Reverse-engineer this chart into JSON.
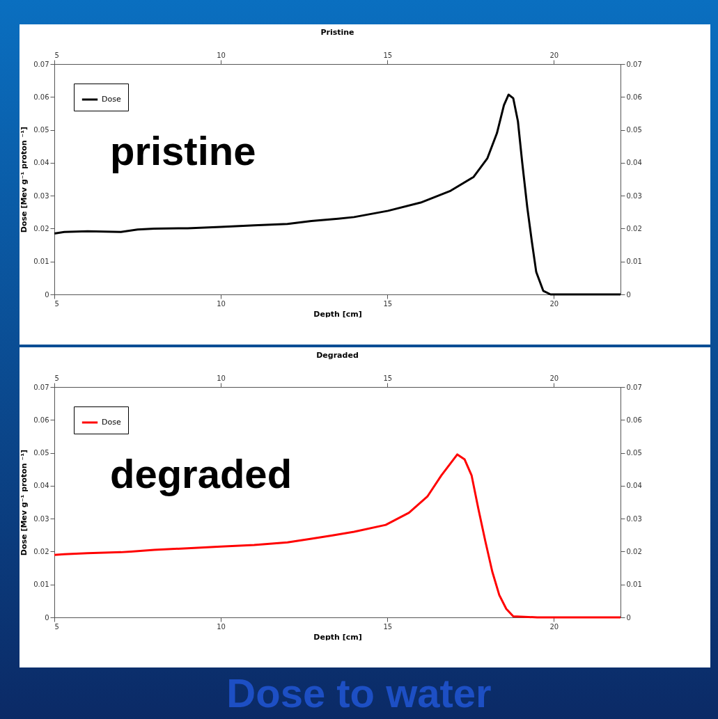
{
  "chart_data": [
    {
      "type": "line",
      "title": "Pristine",
      "xlabel": "Depth [cm]",
      "ylabel": "Dose [Mev g⁻¹ proton ⁻¹]",
      "annotations": [
        "pristine"
      ],
      "xlim": [
        5,
        22
      ],
      "xticks": [
        5,
        10,
        15,
        20
      ],
      "x2lim": [
        5,
        22
      ],
      "x2ticks": [
        5,
        10,
        15,
        20
      ],
      "ylim": [
        0,
        0.07
      ],
      "yticks": [
        0,
        0.01,
        0.02,
        0.03,
        0.04,
        0.05,
        0.06,
        0.07
      ],
      "y2lim": [
        0,
        0.07
      ],
      "y2ticks": [
        0,
        0.01,
        0.02,
        0.03,
        0.04,
        0.05,
        0.06,
        0.07
      ],
      "legend": "top left",
      "grid": false,
      "series": [
        {
          "name": "Dose",
          "color": "#000000",
          "x": [
            5,
            5.3,
            6,
            7,
            7.5,
            8,
            9,
            10,
            11,
            12,
            12.72,
            13.52,
            14,
            15.02,
            16.0,
            16.9,
            17.59,
            18.0,
            18.29,
            18.5,
            18.64,
            18.78,
            18.92,
            19.05,
            19.2,
            19.34,
            19.47,
            19.68,
            19.9,
            21,
            22
          ],
          "values": [
            0.0185,
            0.019,
            0.0192,
            0.019,
            0.0197,
            0.02,
            0.0201,
            0.0205,
            0.021,
            0.0214,
            0.0223,
            0.023,
            0.0235,
            0.0254,
            0.0279,
            0.0315,
            0.0357,
            0.0413,
            0.049,
            0.0575,
            0.0607,
            0.0596,
            0.0526,
            0.04,
            0.0265,
            0.0159,
            0.0068,
            0.0011,
            0,
            0,
            0
          ]
        }
      ]
    },
    {
      "type": "line",
      "title": "Degraded",
      "xlabel": "Depth [cm]",
      "ylabel": "Dose [Mev g⁻¹ proton ⁻¹]",
      "annotations": [
        "degraded",
        "Dose to water"
      ],
      "xlim": [
        5,
        22
      ],
      "xticks": [
        5,
        10,
        15,
        20
      ],
      "x2lim": [
        5,
        22
      ],
      "x2ticks": [
        5,
        10,
        15,
        20
      ],
      "ylim": [
        0,
        0.07
      ],
      "yticks": [
        0,
        0.01,
        0.02,
        0.03,
        0.04,
        0.05,
        0.06,
        0.07
      ],
      "y2lim": [
        0,
        0.07
      ],
      "y2ticks": [
        0,
        0.01,
        0.02,
        0.03,
        0.04,
        0.05,
        0.06,
        0.07
      ],
      "legend": "top left",
      "grid": false,
      "series": [
        {
          "name": "Dose",
          "color": "#ff0000",
          "x": [
            5,
            5.3,
            6,
            7,
            7.3,
            8,
            9,
            10,
            11,
            12,
            12.72,
            13.35,
            14,
            14.95,
            15.65,
            16.2,
            16.62,
            17.1,
            17.32,
            17.53,
            17.73,
            17.94,
            18.15,
            18.36,
            18.57,
            18.78,
            19.5,
            22
          ],
          "values": [
            0.019,
            0.0192,
            0.0195,
            0.0198,
            0.02,
            0.0205,
            0.021,
            0.0215,
            0.022,
            0.0228,
            0.0239,
            0.0249,
            0.026,
            0.0281,
            0.0318,
            0.0367,
            0.0431,
            0.0495,
            0.048,
            0.0431,
            0.0331,
            0.0232,
            0.0139,
            0.0068,
            0.0026,
            0.0003,
            0,
            0
          ]
        }
      ]
    }
  ]
}
